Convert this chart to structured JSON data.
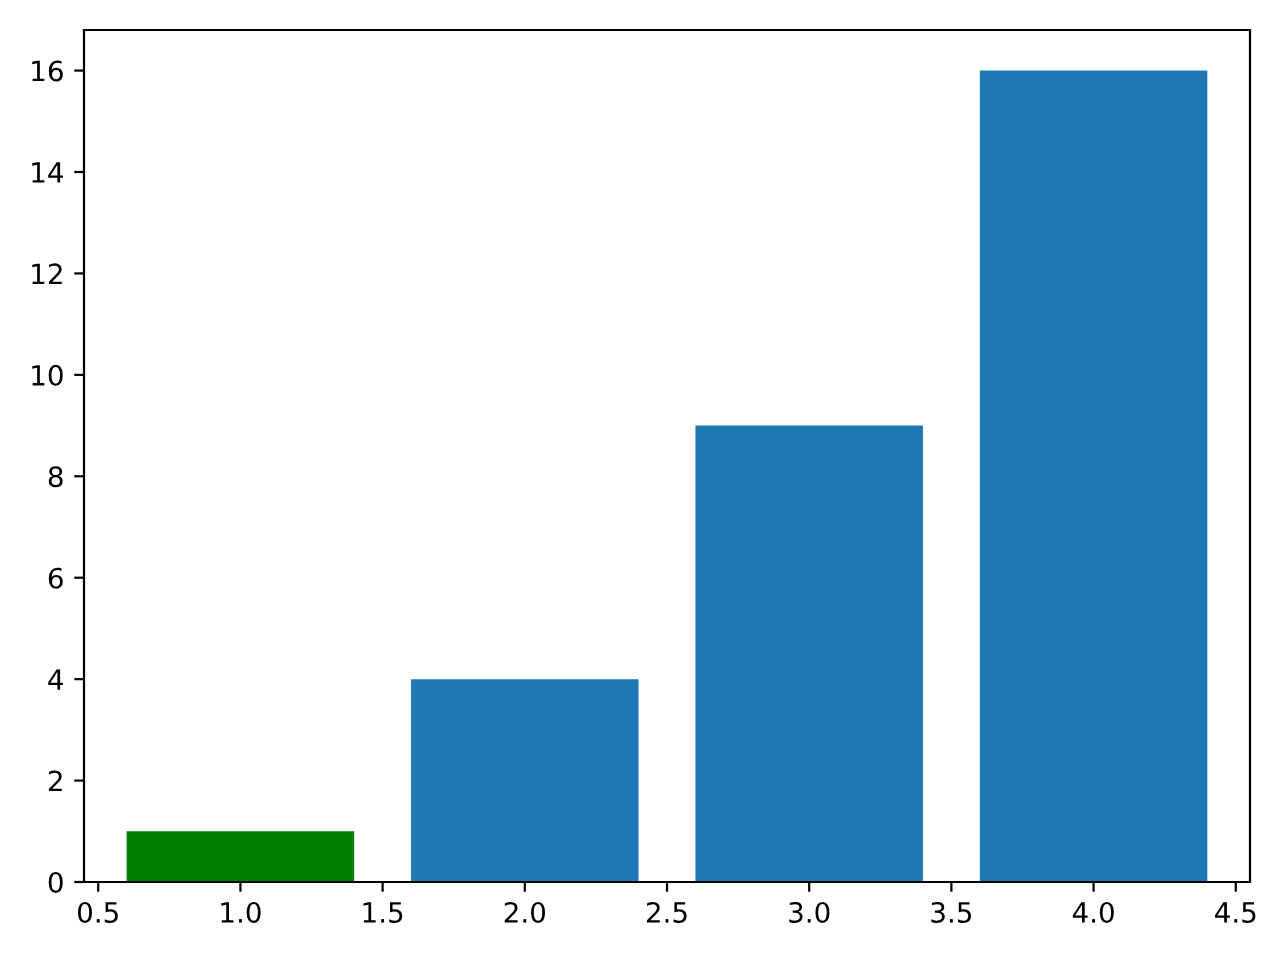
{
  "chart_data": {
    "type": "bar",
    "x": [
      1,
      2,
      3,
      4
    ],
    "values": [
      1,
      4,
      9,
      16
    ],
    "colors": [
      "#008000",
      "#1f77b4",
      "#1f77b4",
      "#1f77b4"
    ],
    "xlim": [
      0.45,
      4.55
    ],
    "xticks": [
      0.5,
      {
        "value": 1,
        "label": "1.0"
      },
      1.5,
      {
        "value": 2,
        "label": "2.0"
      },
      2.5,
      {
        "value": 3,
        "label": "3.0"
      },
      3.5,
      {
        "value": 4,
        "label": "4.0"
      },
      4.5
    ],
    "ylim": [
      0,
      16.8
    ],
    "yticks": [
      0,
      2,
      4,
      6,
      8,
      10,
      12,
      14,
      16
    ],
    "grid": false,
    "legend": false
  }
}
